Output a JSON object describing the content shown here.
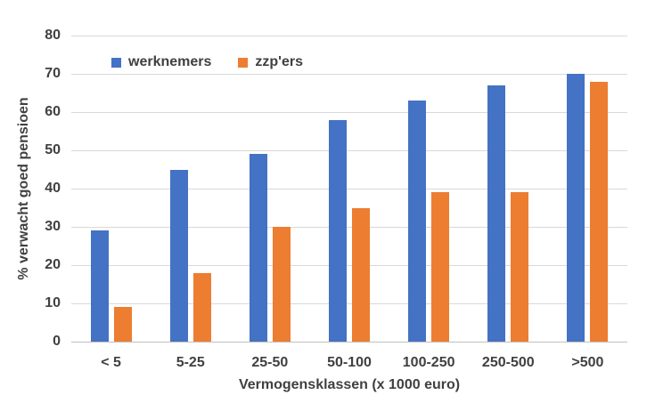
{
  "chart_data": {
    "type": "bar",
    "title": "",
    "categories": [
      "< 5",
      "5-25",
      "25-50",
      "50-100",
      "100-250",
      "250-500",
      ">500"
    ],
    "series": [
      {
        "name": "werknemers",
        "color": "#4472C4",
        "values": [
          29,
          45,
          49,
          58,
          63,
          67,
          70
        ]
      },
      {
        "name": "zzp'ers",
        "color": "#ED7D31",
        "values": [
          9,
          18,
          30,
          35,
          39,
          39,
          68
        ]
      }
    ],
    "xlabel": "Vermogensklassen (x 1000 euro)",
    "ylabel": "% verwacht goed pensioen",
    "ylim": [
      0,
      80
    ],
    "yticks": [
      0,
      10,
      20,
      30,
      40,
      50,
      60,
      70,
      80
    ],
    "grid": true,
    "legend_position": "top-inside"
  },
  "colors": {
    "background": "#FFFFFF",
    "text": "#404040",
    "gridline": "#D9D9D9",
    "axis_line": "#C0C0C0"
  }
}
